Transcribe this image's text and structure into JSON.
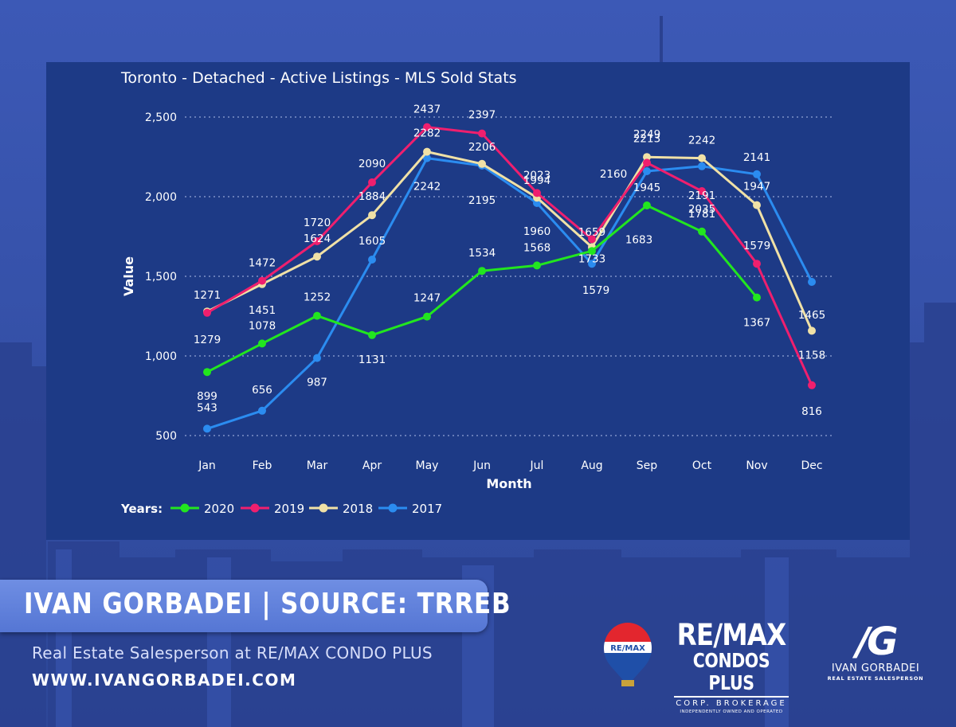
{
  "branding": {
    "banner": "IVAN GORBADEI  |  SOURCE: TRREB",
    "subtitle": "Real Estate Salesperson at RE/MAX CONDO PLUS",
    "website": "WWW.IVANGORBADEI.COM",
    "balloon_text": "RE/MAX",
    "remax_logo": {
      "line1": "RE/MAX",
      "line2": "CONDOS PLUS",
      "line3": "CORP. BROKERAGE",
      "line4": "INDEPENDENTLY OWNED AND OPERATED"
    },
    "ig_logo": {
      "mark": "/G",
      "name": "IVAN GORBADEI",
      "role": "REAL ESTATE SALESPERSON"
    }
  },
  "colors": {
    "background": "#3550a8",
    "panel": "#1d3a86",
    "banner": "#5d7fd9",
    "series_2020": "#22e61f",
    "series_2019": "#ef1f6e",
    "series_2018": "#f0e1a6",
    "series_2017": "#2b8cf0"
  },
  "chart_data": {
    "type": "line",
    "title": "Toronto - Detached - Active Listings - MLS Sold Stats",
    "xlabel": "Month",
    "ylabel": "Value",
    "categories": [
      "Jan",
      "Feb",
      "Mar",
      "Apr",
      "May",
      "Jun",
      "Jul",
      "Aug",
      "Sep",
      "Oct",
      "Nov",
      "Dec"
    ],
    "ylim": [
      500,
      2500
    ],
    "yticks": [
      500,
      1000,
      1500,
      2000,
      2500
    ],
    "ytick_labels": [
      "500",
      "1,000",
      "1,500",
      "2,000",
      "2,500"
    ],
    "grid": "horizontal dotted",
    "legend": {
      "title": "Years:",
      "position": "bottom-left"
    },
    "series": [
      {
        "name": "2020",
        "color": "#22e61f",
        "values": [
          899,
          1078,
          1252,
          1131,
          1247,
          1534,
          1568,
          1659,
          1945,
          1781,
          1367,
          null
        ]
      },
      {
        "name": "2019",
        "color": "#ef1f6e",
        "values": [
          1271,
          1472,
          1720,
          2090,
          2437,
          2397,
          2023,
          1733,
          2213,
          2035,
          1579,
          816
        ]
      },
      {
        "name": "2018",
        "color": "#f0e1a6",
        "values": [
          1279,
          1451,
          1624,
          1884,
          2282,
          2206,
          1994,
          1683,
          2249,
          2242,
          1947,
          1158
        ]
      },
      {
        "name": "2017",
        "color": "#2b8cf0",
        "values": [
          543,
          656,
          987,
          1605,
          2242,
          2195,
          1960,
          1579,
          2160,
          2191,
          2141,
          1465
        ]
      }
    ]
  }
}
